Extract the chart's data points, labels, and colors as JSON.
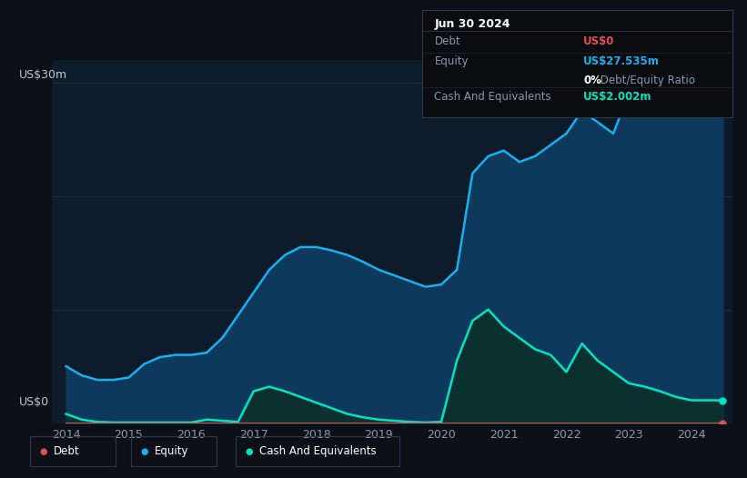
{
  "bg_color": "#0d1117",
  "chart_bg": "#0d1b2a",
  "grid_color": "#1e3048",
  "text_color": "#8899aa",
  "ylabel_text": "US$30m",
  "y0_text": "US$0",
  "equity_color": "#1ab0f0",
  "equity_fill": "#0d3a5c",
  "cash_color": "#00e5c0",
  "cash_fill": "#0a3030",
  "debt_color": "#e05050",
  "axis_label_color": "#8899aa",
  "tooltip_title": "Jun 30 2024",
  "tooltip_debt_label": "Debt",
  "tooltip_debt_value": "US$0",
  "tooltip_equity_label": "Equity",
  "tooltip_equity_value": "US$27.535m",
  "tooltip_ratio": "0% Debt/Equity Ratio",
  "tooltip_ratio_bold": "0%",
  "tooltip_cash_label": "Cash And Equivalents",
  "tooltip_cash_value": "US$2.002m",
  "years": [
    2014.0,
    2014.25,
    2014.5,
    2014.75,
    2015.0,
    2015.25,
    2015.5,
    2015.75,
    2016.0,
    2016.25,
    2016.5,
    2016.75,
    2017.0,
    2017.25,
    2017.5,
    2017.75,
    2018.0,
    2018.25,
    2018.5,
    2018.75,
    2019.0,
    2019.25,
    2019.5,
    2019.75,
    2020.0,
    2020.25,
    2020.5,
    2020.75,
    2021.0,
    2021.25,
    2021.5,
    2021.75,
    2022.0,
    2022.25,
    2022.5,
    2022.75,
    2023.0,
    2023.25,
    2023.5,
    2023.75,
    2024.0,
    2024.25,
    2024.5
  ],
  "equity": [
    5.0,
    4.2,
    3.8,
    3.8,
    4.0,
    5.2,
    5.8,
    6.0,
    6.0,
    6.2,
    7.5,
    9.5,
    11.5,
    13.5,
    14.8,
    15.5,
    15.5,
    15.2,
    14.8,
    14.2,
    13.5,
    13.0,
    12.5,
    12.0,
    12.2,
    13.5,
    22.0,
    23.5,
    24.0,
    23.0,
    23.5,
    24.5,
    25.5,
    27.5,
    26.5,
    25.5,
    29.0,
    29.5,
    28.5,
    28.0,
    27.5,
    28.0,
    27.535
  ],
  "cash": [
    0.8,
    0.3,
    0.1,
    0.05,
    0.05,
    0.05,
    0.05,
    0.05,
    0.05,
    0.3,
    0.2,
    0.1,
    2.8,
    3.2,
    2.8,
    2.3,
    1.8,
    1.3,
    0.8,
    0.5,
    0.3,
    0.2,
    0.1,
    0.05,
    0.1,
    5.5,
    9.0,
    10.0,
    8.5,
    7.5,
    6.5,
    6.0,
    4.5,
    7.0,
    5.5,
    4.5,
    3.5,
    3.2,
    2.8,
    2.3,
    2.002,
    2.0,
    2.002
  ],
  "debt": [
    0.0,
    0.0,
    0.0,
    0.0,
    0.0,
    0.0,
    0.0,
    0.0,
    0.0,
    0.0,
    0.0,
    0.0,
    0.0,
    0.0,
    0.0,
    0.0,
    0.0,
    0.0,
    0.0,
    0.0,
    0.0,
    0.0,
    0.0,
    0.0,
    0.0,
    0.0,
    0.0,
    0.0,
    0.0,
    0.0,
    0.0,
    0.0,
    0.0,
    0.0,
    0.0,
    0.0,
    0.0,
    0.0,
    0.0,
    0.0,
    0.0,
    0.0,
    0.0
  ],
  "xticks": [
    2014,
    2015,
    2016,
    2017,
    2018,
    2019,
    2020,
    2021,
    2022,
    2023,
    2024
  ],
  "ylim": [
    0,
    32
  ],
  "legend_items": [
    {
      "label": "Debt",
      "color": "#e05050"
    },
    {
      "label": "Equity",
      "color": "#1ab0f0"
    },
    {
      "label": "Cash And Equivalents",
      "color": "#00e5c0"
    }
  ]
}
